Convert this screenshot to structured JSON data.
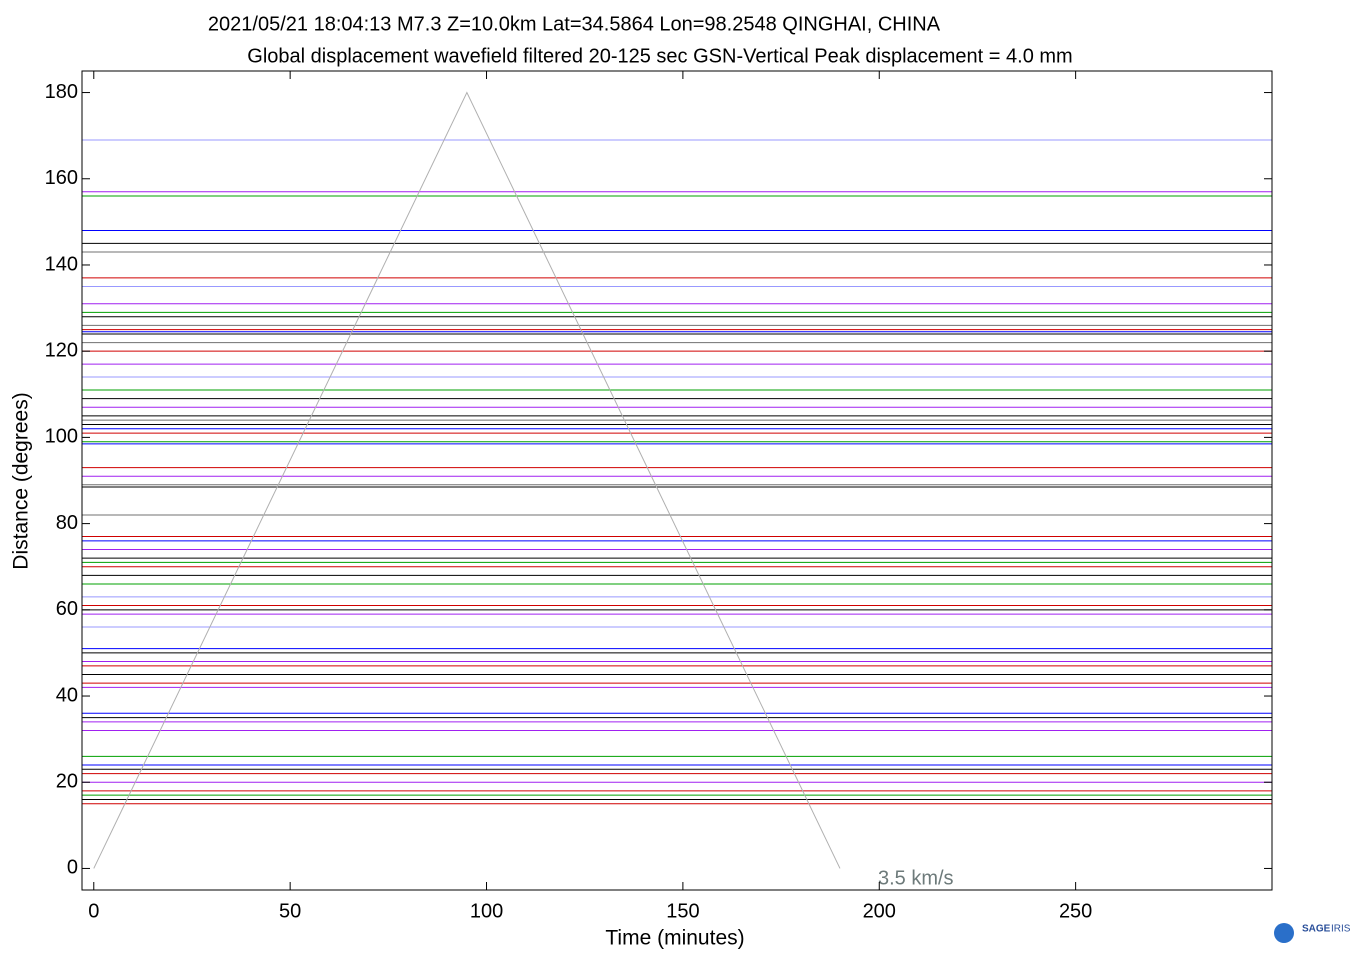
{
  "chart_data": {
    "type": "record-section",
    "title": "2021/05/21  18:04:13  M7.3  Z=10.0km  Lat=34.5864 Lon=98.2548  QINGHAI, CHINA",
    "subtitle": "Global displacement wavefield     filtered 20-125 sec     GSN-Vertical     Peak displacement = 4.0 mm",
    "x_label": "Time (minutes)",
    "y_label": "Distance (degrees)",
    "xlim": [
      -3,
      300
    ],
    "ylim": [
      -5,
      185
    ],
    "xticks": [
      0,
      50,
      100,
      150,
      200,
      250
    ],
    "yticks": [
      0,
      20,
      40,
      60,
      80,
      100,
      120,
      140,
      160,
      180
    ],
    "traces": [
      {
        "distance": 169,
        "color": "#9999ff"
      },
      {
        "distance": 157,
        "color": "#a020f0"
      },
      {
        "distance": 156,
        "color": "#00a000"
      },
      {
        "distance": 148,
        "color": "#0000ff"
      },
      {
        "distance": 145,
        "color": "#000000"
      },
      {
        "distance": 143,
        "color": "#707070"
      },
      {
        "distance": 137,
        "color": "#d00000"
      },
      {
        "distance": 135,
        "color": "#9999ff"
      },
      {
        "distance": 131,
        "color": "#a020f0"
      },
      {
        "distance": 129,
        "color": "#00a000"
      },
      {
        "distance": 128,
        "color": "#000000"
      },
      {
        "distance": 126,
        "color": "#707070"
      },
      {
        "distance": 125,
        "color": "#d00000"
      },
      {
        "distance": 124.5,
        "color": "#0000ff"
      },
      {
        "distance": 124,
        "color": "#000000"
      },
      {
        "distance": 122,
        "color": "#707070"
      },
      {
        "distance": 120,
        "color": "#d00000"
      },
      {
        "distance": 117,
        "color": "#a020f0"
      },
      {
        "distance": 114,
        "color": "#9999ff"
      },
      {
        "distance": 111,
        "color": "#00a000"
      },
      {
        "distance": 109,
        "color": "#000000"
      },
      {
        "distance": 107,
        "color": "#a020f0"
      },
      {
        "distance": 105,
        "color": "#000000"
      },
      {
        "distance": 104,
        "color": "#707070"
      },
      {
        "distance": 103,
        "color": "#000000"
      },
      {
        "distance": 102,
        "color": "#0000ff"
      },
      {
        "distance": 101,
        "color": "#d00000"
      },
      {
        "distance": 99,
        "color": "#00a000"
      },
      {
        "distance": 98.5,
        "color": "#0000ff"
      },
      {
        "distance": 93,
        "color": "#d00000"
      },
      {
        "distance": 91,
        "color": "#a020f0"
      },
      {
        "distance": 89,
        "color": "#707070"
      },
      {
        "distance": 88.5,
        "color": "#000000"
      },
      {
        "distance": 82,
        "color": "#707070"
      },
      {
        "distance": 77,
        "color": "#d00000"
      },
      {
        "distance": 76,
        "color": "#0000ff"
      },
      {
        "distance": 74,
        "color": "#a020f0"
      },
      {
        "distance": 72,
        "color": "#000000"
      },
      {
        "distance": 71,
        "color": "#00a000"
      },
      {
        "distance": 70,
        "color": "#d00000"
      },
      {
        "distance": 68,
        "color": "#000000"
      },
      {
        "distance": 66,
        "color": "#00a000"
      },
      {
        "distance": 63,
        "color": "#9999ff"
      },
      {
        "distance": 61,
        "color": "#d00000"
      },
      {
        "distance": 60,
        "color": "#000000"
      },
      {
        "distance": 59,
        "color": "#a020f0"
      },
      {
        "distance": 56,
        "color": "#9999ff"
      },
      {
        "distance": 51,
        "color": "#0000ff"
      },
      {
        "distance": 50,
        "color": "#000000"
      },
      {
        "distance": 48,
        "color": "#a020f0"
      },
      {
        "distance": 47,
        "color": "#d00000"
      },
      {
        "distance": 45,
        "color": "#000000"
      },
      {
        "distance": 43,
        "color": "#d00000"
      },
      {
        "distance": 42,
        "color": "#a020f0"
      },
      {
        "distance": 36,
        "color": "#0000ff"
      },
      {
        "distance": 35,
        "color": "#000000"
      },
      {
        "distance": 34,
        "color": "#a020f0"
      },
      {
        "distance": 32,
        "color": "#a020f0"
      },
      {
        "distance": 26,
        "color": "#00a000"
      },
      {
        "distance": 24,
        "color": "#0000ff"
      },
      {
        "distance": 23,
        "color": "#000000"
      },
      {
        "distance": 22,
        "color": "#d00000"
      },
      {
        "distance": 20,
        "color": "#a020f0"
      },
      {
        "distance": 18,
        "color": "#d00000"
      },
      {
        "distance": 17,
        "color": "#00a000"
      },
      {
        "distance": 16,
        "color": "#000000"
      },
      {
        "distance": 15,
        "color": "#d00000"
      }
    ],
    "reference_line": {
      "label": "3.5 km/s",
      "color": "#b0b0b0",
      "x": [
        0,
        95,
        190
      ],
      "y": [
        0,
        180,
        0
      ]
    }
  },
  "logo": {
    "name": "SAGE",
    "sub": "IRIS"
  }
}
